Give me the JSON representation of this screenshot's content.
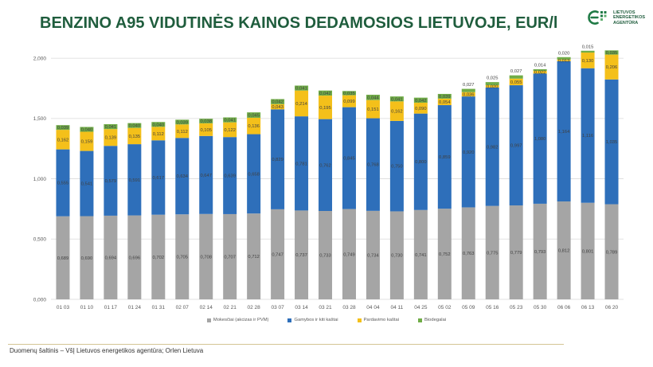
{
  "chart_data": {
    "type": "bar",
    "stacked": true,
    "title": "BENZINO A95 VIDUTINĖS KAINOS DEDAMOSIOS LIETUVOJE, EUR/l",
    "xlabel": "",
    "ylabel": "",
    "ylim": [
      0,
      2.1
    ],
    "yticks": [
      0,
      0.5,
      1,
      1.5,
      2
    ],
    "grid": true,
    "legend_position": "bottom",
    "categories": [
      "01 03",
      "01 10",
      "01 17",
      "01 24",
      "01 31",
      "02 07",
      "02 14",
      "02 21",
      "02 28",
      "03 07",
      "03 14",
      "03 21",
      "03 28",
      "04 04",
      "04 11",
      "04 25",
      "05 02",
      "05 09",
      "05 16",
      "05 23",
      "05 30",
      "06 06",
      "06 13",
      "06 20"
    ],
    "series": [
      {
        "name": "Mokesčiai (akcizas ir PVM)",
        "color": "#a5a5a5",
        "values": [
          0.689,
          0.69,
          0.694,
          0.696,
          0.702,
          0.705,
          0.708,
          0.707,
          0.712,
          0.747,
          0.737,
          0.733,
          0.749,
          0.734,
          0.73,
          0.741,
          0.752,
          0.763,
          0.775,
          0.779,
          0.793,
          0.812,
          0.801,
          0.789
        ]
      },
      {
        "name": "Gamybos ir kiti kaštai",
        "color": "#2e6fba",
        "values": [
          0.555,
          0.541,
          0.579,
          0.591,
          0.617,
          0.634,
          0.647,
          0.639,
          0.658,
          0.829,
          0.781,
          0.762,
          0.845,
          0.768,
          0.75,
          0.8,
          0.859,
          0.92,
          0.982,
          0.997,
          1.08,
          1.164,
          1.116,
          1.035
        ]
      },
      {
        "name": "Pardavimo kaštai",
        "color": "#f4c01a",
        "values": [
          0.162,
          0.159,
          0.139,
          0.135,
          0.112,
          0.112,
          0.105,
          0.122,
          0.136,
          0.043,
          0.214,
          0.195,
          0.099,
          0.151,
          0.162,
          0.09,
          0.054,
          0.036,
          0.02,
          0.055,
          0.022,
          0.013,
          0.13,
          0.206
        ]
      },
      {
        "name": "Biodegalai",
        "color": "#70ad47",
        "values": [
          0.039,
          0.04,
          0.041,
          0.04,
          0.04,
          0.039,
          0.038,
          0.041,
          0.045,
          0.042,
          0.041,
          0.042,
          0.035,
          0.044,
          0.041,
          0.042,
          0.039,
          0.027,
          0.025,
          0.027,
          0.014,
          0.02,
          0.015,
          0.035
        ]
      }
    ]
  },
  "header": {
    "logo_lines": [
      "LIETUVOS",
      "ENERGETIKOS",
      "AGENTŪRA"
    ],
    "logo_color": "#1f7a45"
  },
  "footer": {
    "source": "Duomenų šaltinis – VšĮ Lietuvos energetikos agentūra; Orlen Lietuva"
  }
}
